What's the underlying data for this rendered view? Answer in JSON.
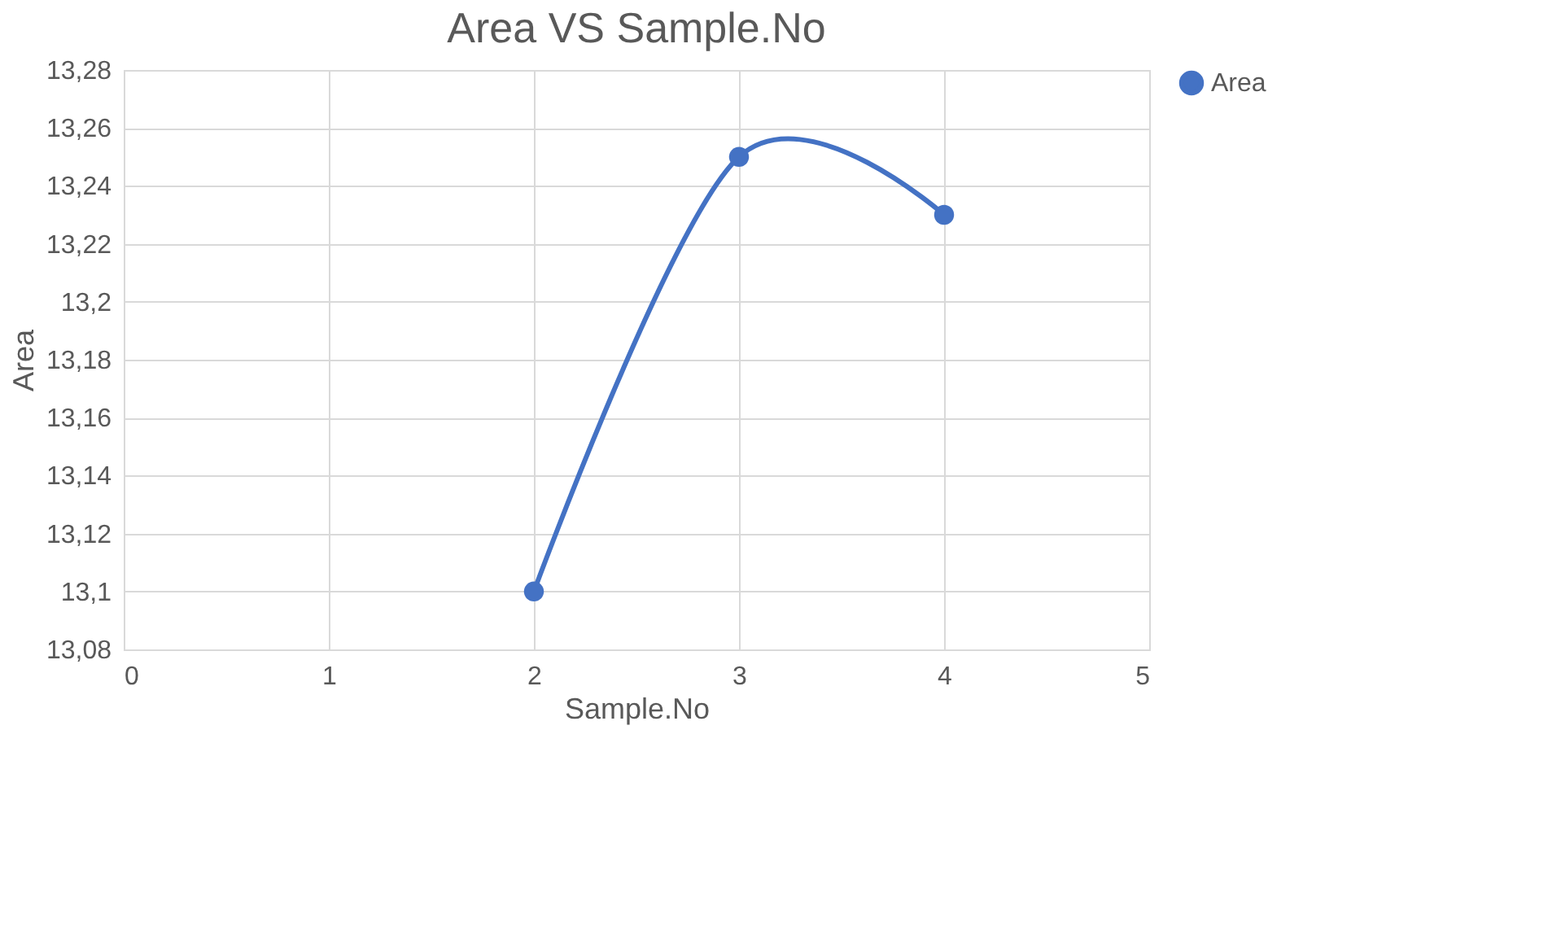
{
  "chart_data": {
    "type": "line",
    "title": "Area VS Sample.No",
    "xlabel": "Sample.No",
    "ylabel": "Area",
    "x": [
      2,
      3,
      4
    ],
    "series": [
      {
        "name": "Area",
        "color": "#4472c4",
        "values": [
          13.1,
          13.25,
          13.23
        ]
      }
    ],
    "xlim": [
      0,
      5
    ],
    "xticks": [
      0,
      1,
      2,
      3,
      4,
      5
    ],
    "ylim": [
      13.08,
      13.28
    ],
    "yticks": [
      {
        "value": 13.08,
        "label": "13,08"
      },
      {
        "value": 13.1,
        "label": "13,1"
      },
      {
        "value": 13.12,
        "label": "13,12"
      },
      {
        "value": 13.14,
        "label": "13,14"
      },
      {
        "value": 13.16,
        "label": "13,16"
      },
      {
        "value": 13.18,
        "label": "13,18"
      },
      {
        "value": 13.2,
        "label": "13,2"
      },
      {
        "value": 13.22,
        "label": "13,22"
      },
      {
        "value": 13.24,
        "label": "13,24"
      },
      {
        "value": 13.26,
        "label": "13,26"
      },
      {
        "value": 13.28,
        "label": "13,28"
      }
    ],
    "grid": true,
    "legend": "right",
    "marker": "circle",
    "line_style": "solid"
  }
}
